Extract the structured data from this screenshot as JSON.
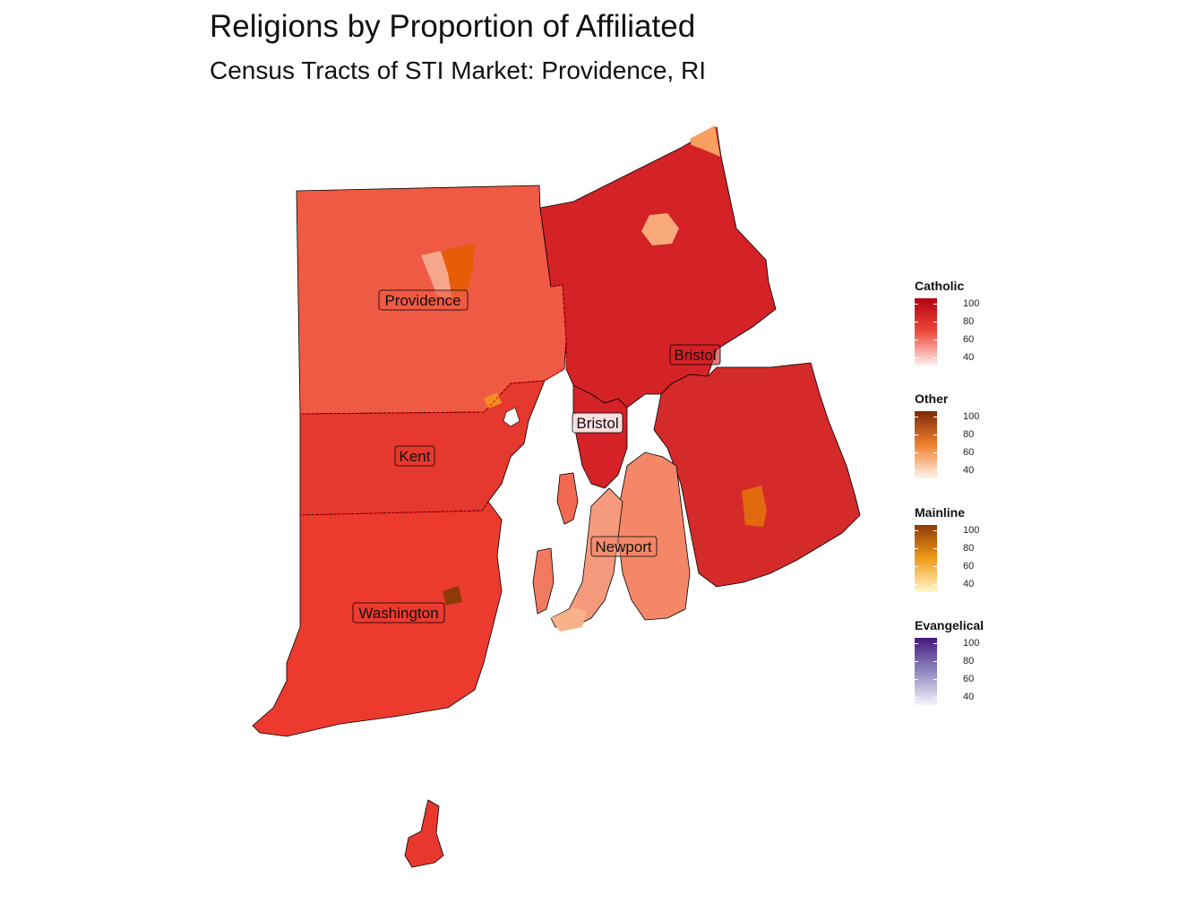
{
  "title": "Religions by Proportion of Affiliated",
  "subtitle": "Census Tracts of STI Market: Providence, RI",
  "counties": [
    {
      "label": "Providence"
    },
    {
      "label": "Bristol"
    },
    {
      "label": "Bristol"
    },
    {
      "label": "Kent"
    },
    {
      "label": "Newport"
    },
    {
      "label": "Washington"
    }
  ],
  "legends": [
    {
      "title": "Catholic",
      "colors": [
        "#fff0ee",
        "#ef4a3a",
        "#b30012"
      ],
      "ticks": [
        "100",
        "80",
        "60",
        "40"
      ]
    },
    {
      "title": "Other",
      "colors": [
        "#fff3e8",
        "#f1802e",
        "#7e2a06"
      ],
      "ticks": [
        "100",
        "80",
        "60",
        "40"
      ]
    },
    {
      "title": "Mainline",
      "colors": [
        "#fff8c8",
        "#f39b1a",
        "#8e3a06"
      ],
      "ticks": [
        "100",
        "80",
        "60",
        "40"
      ]
    },
    {
      "title": "Evangelical",
      "colors": [
        "#f5f4fa",
        "#8f89c0",
        "#46187e"
      ],
      "ticks": [
        "100",
        "80",
        "60",
        "40"
      ]
    }
  ],
  "region_colors": {
    "providence": "#ef5a45",
    "bristol_ne": "#d42227",
    "kent": "#e5382e",
    "washington": "#ec3a2e",
    "newport_east": "#d52a2a",
    "aquidneck": "#f48768",
    "conanicut": "#f59a7d"
  }
}
